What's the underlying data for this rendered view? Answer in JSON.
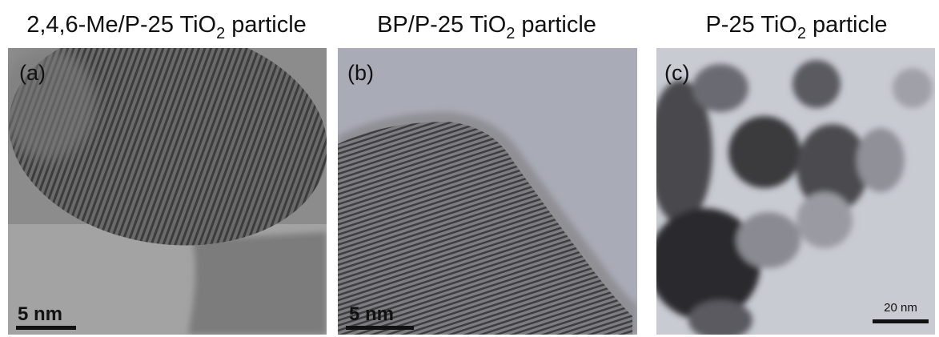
{
  "panels": [
    {
      "title": [
        "2,4,6-Me/P-25 TiO",
        "2",
        " particle"
      ],
      "label": "(a)",
      "scale": "5 nm"
    },
    {
      "title": [
        "BP/P-25 TiO",
        "2",
        " particle"
      ],
      "label": "(b)",
      "scale": "5 nm"
    },
    {
      "title": [
        "P-25 TiO",
        "2",
        " particle"
      ],
      "label": "(c)",
      "scale": "20 nm"
    }
  ]
}
